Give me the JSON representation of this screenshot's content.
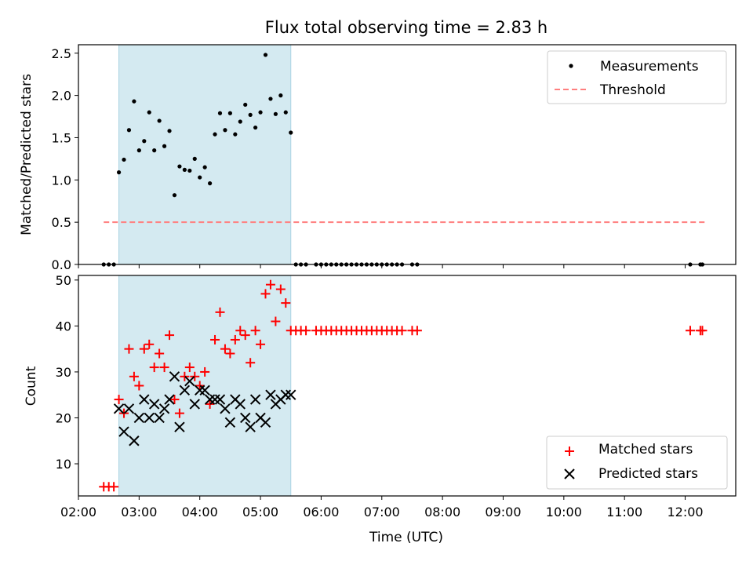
{
  "chart_data": [
    {
      "type": "scatter",
      "title": "Flux total observing time = 2.83 h",
      "xlabel": "",
      "ylabel": "Matched/Predicted stars",
      "xlim": [
        "02:00",
        "12:50"
      ],
      "ylim": [
        0,
        2.6
      ],
      "yticks": [
        "0.0",
        "0.5",
        "1.0",
        "1.5",
        "2.0",
        "2.5"
      ],
      "grid": false,
      "legend_position": "top-right",
      "highlight_span": {
        "start": "02:40",
        "end": "05:30",
        "color": "#d4eaf1"
      },
      "series": [
        {
          "name": "Measurements",
          "marker": "dot",
          "color": "#000000",
          "points": [
            [
              "02:25",
              0
            ],
            [
              "02:30",
              0
            ],
            [
              "02:35",
              0
            ],
            [
              "02:40",
              1.09
            ],
            [
              "02:45",
              1.24
            ],
            [
              "02:50",
              1.59
            ],
            [
              "02:55",
              1.93
            ],
            [
              "03:00",
              1.35
            ],
            [
              "03:05",
              1.46
            ],
            [
              "03:10",
              1.8
            ],
            [
              "03:15",
              1.35
            ],
            [
              "03:20",
              1.7
            ],
            [
              "03:25",
              1.4
            ],
            [
              "03:30",
              1.58
            ],
            [
              "03:35",
              0.82
            ],
            [
              "03:40",
              1.16
            ],
            [
              "03:45",
              1.12
            ],
            [
              "03:50",
              1.11
            ],
            [
              "03:55",
              1.25
            ],
            [
              "04:00",
              1.03
            ],
            [
              "04:05",
              1.15
            ],
            [
              "04:10",
              0.96
            ],
            [
              "04:15",
              1.54
            ],
            [
              "04:20",
              1.79
            ],
            [
              "04:25",
              1.59
            ],
            [
              "04:30",
              1.79
            ],
            [
              "04:35",
              1.54
            ],
            [
              "04:40",
              1.69
            ],
            [
              "04:45",
              1.89
            ],
            [
              "04:50",
              1.77
            ],
            [
              "04:55",
              1.62
            ],
            [
              "05:00",
              1.8
            ],
            [
              "05:05",
              2.48
            ],
            [
              "05:10",
              1.96
            ],
            [
              "05:15",
              1.78
            ],
            [
              "05:20",
              2.0
            ],
            [
              "05:25",
              1.8
            ],
            [
              "05:30",
              1.56
            ],
            [
              "05:35",
              0
            ],
            [
              "05:40",
              0
            ],
            [
              "05:45",
              0
            ],
            [
              "05:55",
              0
            ],
            [
              "06:00",
              0
            ],
            [
              "06:05",
              0
            ],
            [
              "06:10",
              0
            ],
            [
              "06:15",
              0
            ],
            [
              "06:20",
              0
            ],
            [
              "06:25",
              0
            ],
            [
              "06:30",
              0
            ],
            [
              "06:35",
              0
            ],
            [
              "06:40",
              0
            ],
            [
              "06:45",
              0
            ],
            [
              "06:50",
              0
            ],
            [
              "06:55",
              0
            ],
            [
              "07:00",
              0
            ],
            [
              "07:05",
              0
            ],
            [
              "07:10",
              0
            ],
            [
              "07:15",
              0
            ],
            [
              "07:20",
              0
            ],
            [
              "07:30",
              0
            ],
            [
              "07:35",
              0
            ],
            [
              "12:05",
              0
            ],
            [
              "12:15",
              0
            ],
            [
              "12:17",
              0
            ]
          ]
        },
        {
          "name": "Threshold",
          "marker": "dashed-line",
          "color": "#ff7f7f",
          "points": [
            [
              "02:25",
              0.5
            ],
            [
              "12:20",
              0.5
            ]
          ]
        }
      ]
    },
    {
      "type": "scatter",
      "title": "",
      "xlabel": "Time (UTC)",
      "ylabel": "Count",
      "xlim": [
        "02:00",
        "12:50"
      ],
      "ylim": [
        3,
        51
      ],
      "yticks": [
        "10",
        "20",
        "30",
        "40",
        "50"
      ],
      "xticks": [
        "02:00",
        "03:00",
        "04:00",
        "05:00",
        "06:00",
        "07:00",
        "08:00",
        "09:00",
        "10:00",
        "11:00",
        "12:00"
      ],
      "grid": false,
      "legend_position": "bottom-right",
      "highlight_span": {
        "start": "02:40",
        "end": "05:30",
        "color": "#d4eaf1"
      },
      "series": [
        {
          "name": "Matched stars",
          "marker": "plus",
          "color": "#ff0000",
          "points": [
            [
              "02:25",
              5
            ],
            [
              "02:30",
              5
            ],
            [
              "02:35",
              5
            ],
            [
              "02:40",
              24
            ],
            [
              "02:45",
              21
            ],
            [
              "02:50",
              35
            ],
            [
              "02:55",
              29
            ],
            [
              "03:00",
              27
            ],
            [
              "03:05",
              35
            ],
            [
              "03:10",
              36
            ],
            [
              "03:15",
              31
            ],
            [
              "03:20",
              34
            ],
            [
              "03:25",
              31
            ],
            [
              "03:30",
              38
            ],
            [
              "03:35",
              24
            ],
            [
              "03:40",
              21
            ],
            [
              "03:45",
              29
            ],
            [
              "03:50",
              31
            ],
            [
              "03:55",
              29
            ],
            [
              "04:00",
              27
            ],
            [
              "04:05",
              30
            ],
            [
              "04:10",
              23
            ],
            [
              "04:15",
              37
            ],
            [
              "04:20",
              43
            ],
            [
              "04:25",
              35
            ],
            [
              "04:30",
              34
            ],
            [
              "04:35",
              37
            ],
            [
              "04:40",
              39
            ],
            [
              "04:45",
              38
            ],
            [
              "04:50",
              32
            ],
            [
              "04:55",
              39
            ],
            [
              "05:00",
              36
            ],
            [
              "05:05",
              47
            ],
            [
              "05:10",
              49
            ],
            [
              "05:15",
              41
            ],
            [
              "05:20",
              48
            ],
            [
              "05:25",
              45
            ],
            [
              "05:30",
              39
            ],
            [
              "05:35",
              39
            ],
            [
              "05:40",
              39
            ],
            [
              "05:45",
              39
            ],
            [
              "05:55",
              39
            ],
            [
              "06:00",
              39
            ],
            [
              "06:05",
              39
            ],
            [
              "06:10",
              39
            ],
            [
              "06:15",
              39
            ],
            [
              "06:20",
              39
            ],
            [
              "06:25",
              39
            ],
            [
              "06:30",
              39
            ],
            [
              "06:35",
              39
            ],
            [
              "06:40",
              39
            ],
            [
              "06:45",
              39
            ],
            [
              "06:50",
              39
            ],
            [
              "06:55",
              39
            ],
            [
              "07:00",
              39
            ],
            [
              "07:05",
              39
            ],
            [
              "07:10",
              39
            ],
            [
              "07:15",
              39
            ],
            [
              "07:20",
              39
            ],
            [
              "07:30",
              39
            ],
            [
              "07:35",
              39
            ],
            [
              "12:05",
              39
            ],
            [
              "12:15",
              39
            ],
            [
              "12:17",
              39
            ]
          ]
        },
        {
          "name": "Predicted stars",
          "marker": "x",
          "color": "#000000",
          "points": [
            [
              "02:40",
              22
            ],
            [
              "02:45",
              17
            ],
            [
              "02:50",
              22
            ],
            [
              "02:55",
              15
            ],
            [
              "03:00",
              20
            ],
            [
              "03:05",
              24
            ],
            [
              "03:10",
              20
            ],
            [
              "03:15",
              23
            ],
            [
              "03:20",
              20
            ],
            [
              "03:25",
              22
            ],
            [
              "03:30",
              24
            ],
            [
              "03:35",
              29
            ],
            [
              "03:40",
              18
            ],
            [
              "03:45",
              26
            ],
            [
              "03:50",
              28
            ],
            [
              "03:55",
              23
            ],
            [
              "04:00",
              26
            ],
            [
              "04:05",
              26
            ],
            [
              "04:10",
              24
            ],
            [
              "04:15",
              24
            ],
            [
              "04:20",
              24
            ],
            [
              "04:25",
              22
            ],
            [
              "04:30",
              19
            ],
            [
              "04:35",
              24
            ],
            [
              "04:40",
              23
            ],
            [
              "04:45",
              20
            ],
            [
              "04:50",
              18
            ],
            [
              "04:55",
              24
            ],
            [
              "05:00",
              20
            ],
            [
              "05:05",
              19
            ],
            [
              "05:10",
              25
            ],
            [
              "05:15",
              23
            ],
            [
              "05:20",
              24
            ],
            [
              "05:25",
              25
            ],
            [
              "05:30",
              25
            ]
          ]
        }
      ]
    }
  ]
}
